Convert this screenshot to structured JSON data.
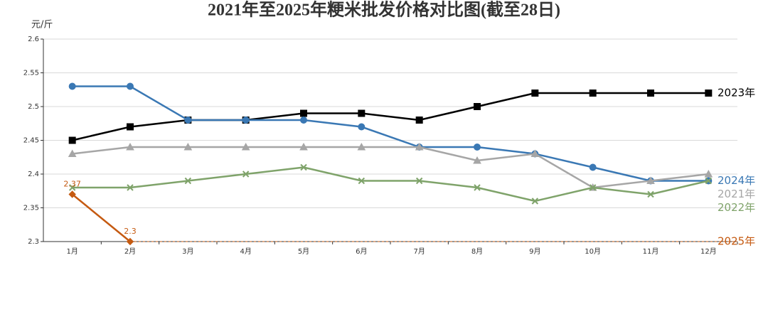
{
  "chart_data": {
    "type": "line",
    "title": "2021年至2025年粳米批发价格对比图(截至28日)",
    "y_label": "元/斤",
    "categories": [
      "1月",
      "2月",
      "3月",
      "4月",
      "5月",
      "6月",
      "7月",
      "8月",
      "9月",
      "10月",
      "11月",
      "12月"
    ],
    "ylim": [
      2.3,
      2.6
    ],
    "yticks": [
      2.3,
      2.35,
      2.4,
      2.45,
      2.5,
      2.55,
      2.6
    ],
    "grid": true,
    "series": [
      {
        "name": "2023年",
        "color": "#000000",
        "marker": "square",
        "values": [
          2.45,
          2.47,
          2.48,
          2.48,
          2.49,
          2.49,
          2.48,
          2.5,
          2.52,
          2.52,
          2.52,
          2.52
        ]
      },
      {
        "name": "2024年",
        "color": "#3a78b4",
        "marker": "circle",
        "values": [
          2.53,
          2.53,
          2.48,
          2.48,
          2.48,
          2.47,
          2.44,
          2.44,
          2.43,
          2.41,
          2.39,
          2.39
        ]
      },
      {
        "name": "2021年",
        "color": "#a6a6a6",
        "marker": "triangle",
        "values": [
          2.43,
          2.44,
          2.44,
          2.44,
          2.44,
          2.44,
          2.44,
          2.42,
          2.43,
          2.38,
          2.39,
          2.4
        ]
      },
      {
        "name": "2022年",
        "color": "#7fa36a",
        "marker": "cross",
        "values": [
          2.38,
          2.38,
          2.39,
          2.4,
          2.41,
          2.39,
          2.39,
          2.38,
          2.36,
          2.38,
          2.37,
          2.39
        ]
      },
      {
        "name": "2025年",
        "color": "#c55a11",
        "marker": "diamond",
        "show_values": true,
        "values": [
          2.37,
          2.3,
          null,
          null,
          null,
          null,
          null,
          null,
          null,
          null,
          null,
          null
        ]
      }
    ]
  }
}
